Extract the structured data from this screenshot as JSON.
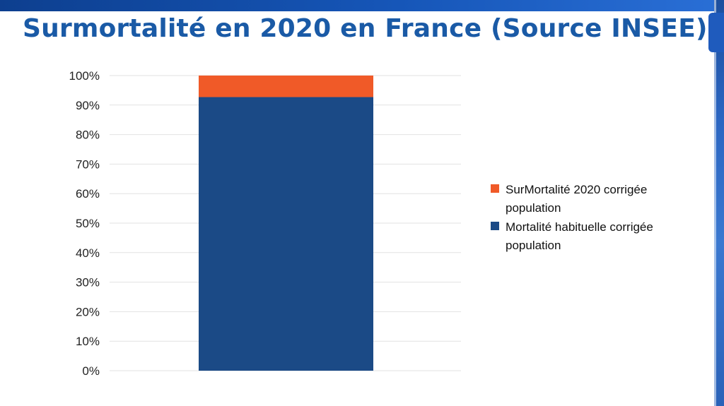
{
  "title": "Surmortalité en 2020 en France (Source INSEE)",
  "colors": {
    "title": "#1a5aa6",
    "excess": "#f05a28",
    "usual": "#1b4a86",
    "band": "#1656b8"
  },
  "chart_data": {
    "type": "bar",
    "stacked": true,
    "categories": [
      ""
    ],
    "series": [
      {
        "name": "Mortalité habituelle corrigée population",
        "values": [
          92.7
        ],
        "color": "#1b4a86"
      },
      {
        "name": "SurMortalité 2020 corrigée population",
        "values": [
          7.3
        ],
        "color": "#f05a28"
      }
    ],
    "ylim": [
      0,
      100
    ],
    "y_ticks": [
      "0%",
      "10%",
      "20%",
      "30%",
      "40%",
      "50%",
      "60%",
      "70%",
      "80%",
      "90%",
      "100%"
    ],
    "grid": true,
    "legend": {
      "position": "right",
      "items": [
        {
          "label_lines": [
            "SurMortalité 2020 corrigée",
            "population"
          ],
          "color": "#f05a28"
        },
        {
          "label_lines": [
            "Mortalité habituelle corrigée",
            "population"
          ],
          "color": "#1b4a86"
        }
      ]
    }
  }
}
